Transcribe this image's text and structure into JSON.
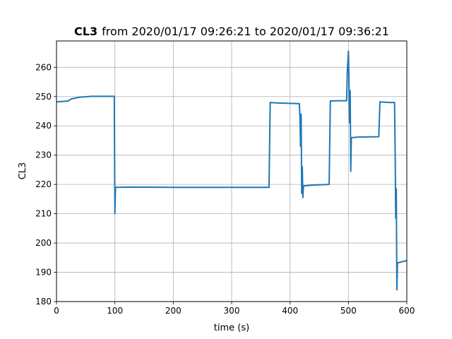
{
  "chart_data": {
    "type": "line",
    "title": "CL3",
    "subtitle": "from 2020/01/17 09:26:21 to 2020/01/17 09:36:21",
    "xlabel": "time (s)",
    "ylabel": "CL3",
    "xlim": [
      0,
      600
    ],
    "ylim": [
      180,
      269
    ],
    "x_ticks": [
      0,
      100,
      200,
      300,
      400,
      500,
      600
    ],
    "y_ticks": [
      180,
      190,
      200,
      210,
      220,
      230,
      240,
      250,
      260
    ],
    "grid": true,
    "line_color": "#1f77b4",
    "series": [
      {
        "points": [
          [
            0,
            248.2
          ],
          [
            20,
            248.5
          ],
          [
            25,
            249.2
          ],
          [
            40,
            249.8
          ],
          [
            60,
            250.1
          ],
          [
            99,
            250.1
          ],
          [
            100,
            210
          ],
          [
            101,
            219
          ],
          [
            130,
            219.1
          ],
          [
            200,
            219.0
          ],
          [
            300,
            219.0
          ],
          [
            364,
            219.0
          ],
          [
            366,
            248
          ],
          [
            380,
            247.8
          ],
          [
            416,
            247.6
          ],
          [
            417,
            243
          ],
          [
            418,
            233
          ],
          [
            419,
            244
          ],
          [
            420,
            217
          ],
          [
            421,
            226
          ],
          [
            422,
            215.5
          ],
          [
            423,
            219.5
          ],
          [
            440,
            219.8
          ],
          [
            467,
            220.0
          ],
          [
            469,
            248.5
          ],
          [
            485,
            248.6
          ],
          [
            497,
            248.6
          ],
          [
            498,
            258
          ],
          [
            500,
            265.5
          ],
          [
            501,
            255
          ],
          [
            502,
            241
          ],
          [
            503,
            252
          ],
          [
            504,
            224.5
          ],
          [
            505,
            236
          ],
          [
            520,
            236.2
          ],
          [
            552,
            236.3
          ],
          [
            554,
            248.2
          ],
          [
            570,
            248.0
          ],
          [
            579,
            248.0
          ],
          [
            580,
            232
          ],
          [
            581,
            208.5
          ],
          [
            582,
            218.5
          ],
          [
            583,
            184
          ],
          [
            584,
            193.2
          ],
          [
            590,
            193.5
          ],
          [
            600,
            194
          ]
        ]
      }
    ]
  }
}
